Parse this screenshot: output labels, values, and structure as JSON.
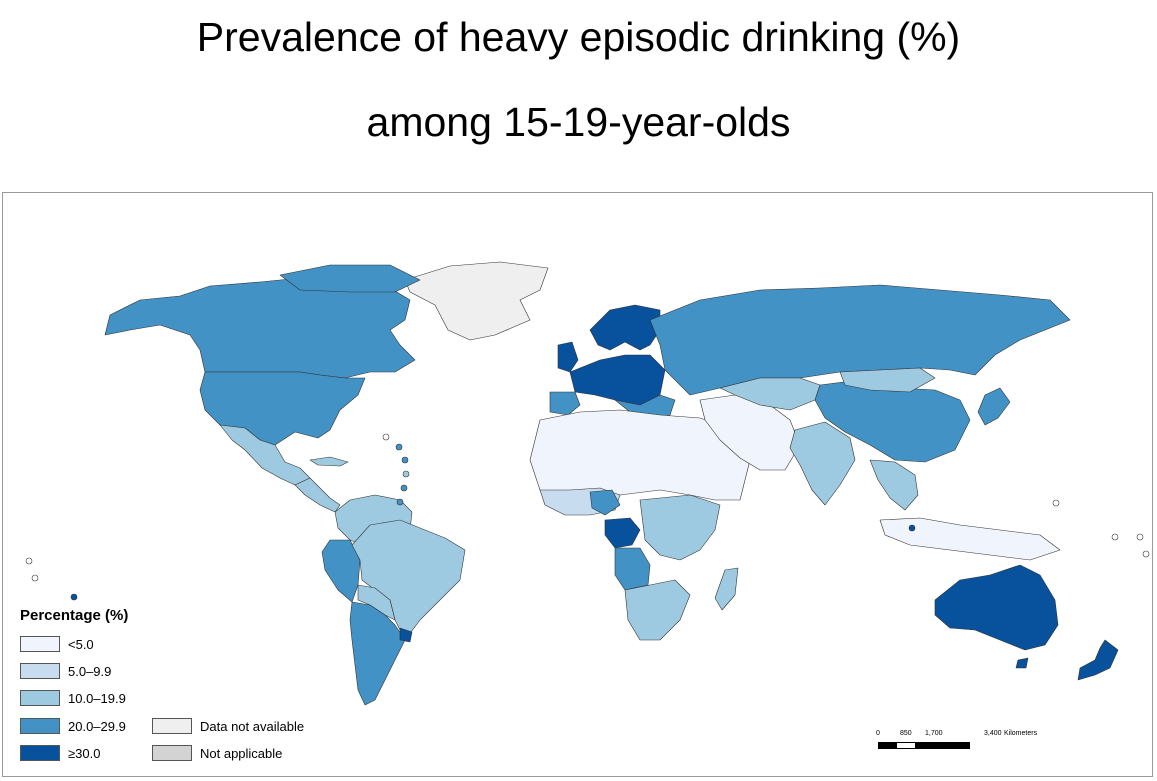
{
  "title": {
    "line1": "Prevalence of heavy episodic drinking (%)",
    "line2": "among 15-19-year-olds"
  },
  "legend": {
    "title": "Percentage (%)",
    "classes": [
      {
        "label": "<5.0",
        "color": "#f0f4fc"
      },
      {
        "label": "5.0–9.9",
        "color": "#c8dcf0"
      },
      {
        "label": "10.0–19.9",
        "color": "#9ecae1"
      },
      {
        "label": "20.0–29.9",
        "color": "#4292c6"
      },
      {
        "label": "≥30.0",
        "color": "#08519c"
      }
    ],
    "other": [
      {
        "label": "Data not available",
        "color": "#efefef"
      },
      {
        "label": "Not applicable",
        "color": "#d3d3d3"
      }
    ]
  },
  "scale_bar": {
    "ticks": [
      "0",
      "850",
      "1,700",
      "3,400"
    ],
    "unit": "Kilometers"
  }
}
